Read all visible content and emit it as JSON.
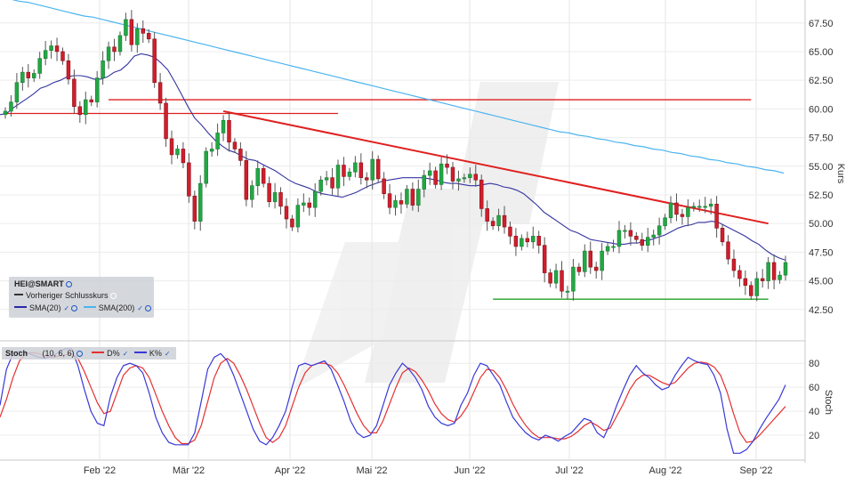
{
  "chart_data": [
    {
      "type": "candlestick",
      "instrument": "HEI@SMART",
      "x_labels": [
        "Feb '22",
        "Mär '22",
        "Apr '22",
        "Mai '22",
        "Jun '22",
        "Jul '22",
        "Aug '22",
        "Sep '22"
      ],
      "ylabel": "Kurs",
      "yticks": [
        42.5,
        45.0,
        47.5,
        50.0,
        52.5,
        55.0,
        57.5,
        60.0,
        62.5,
        65.0,
        67.5
      ],
      "ylim": [
        40.0,
        69.5
      ],
      "legend": {
        "instrument": "HEI@SMART",
        "prev_close": "Vorheriger Schlusskurs",
        "sma20": "SMA(20)",
        "sma200": "SMA(200)"
      },
      "closes": [
        59.8,
        60.6,
        62.3,
        63.2,
        62.7,
        63.1,
        64.4,
        65.1,
        65.5,
        65.0,
        64.2,
        62.6,
        60.2,
        59.5,
        60.8,
        60.6,
        62.7,
        64.2,
        65.4,
        65.0,
        66.4,
        67.8,
        65.6,
        67.0,
        66.6,
        66.1,
        62.3,
        60.5,
        57.4,
        56.0,
        56.5,
        55.3,
        52.4,
        50.2,
        53.5,
        56.3,
        56.5,
        57.9,
        59.0,
        57.1,
        56.5,
        55.5,
        52.1,
        53.3,
        54.8,
        53.5,
        51.9,
        52.7,
        51.5,
        50.4,
        49.7,
        51.6,
        51.8,
        51.4,
        52.8,
        53.8,
        54.0,
        53.1,
        55.1,
        54.1,
        54.5,
        55.3,
        54.0,
        53.8,
        55.6,
        53.9,
        52.6,
        51.4,
        52.0,
        51.7,
        53.0,
        51.6,
        53.0,
        54.2,
        54.6,
        53.4,
        55.2,
        54.9,
        53.7,
        53.9,
        54.0,
        54.3,
        53.8,
        51.3,
        50.2,
        49.8,
        50.7,
        49.7,
        48.9,
        48.0,
        48.7,
        48.4,
        48.9,
        48.1,
        45.7,
        44.8,
        45.9,
        44.1,
        44.1,
        46.2,
        45.8,
        47.6,
        46.2,
        45.9,
        47.6,
        48.0,
        48.0,
        49.4,
        49.4,
        48.9,
        48.6,
        48.1,
        48.8,
        49.0,
        49.8,
        50.5,
        51.8,
        50.8,
        50.6,
        51.4,
        51.5,
        51.5,
        51.5,
        51.7,
        49.6,
        48.4,
        46.9,
        45.9,
        45.2,
        44.6,
        43.7,
        45.2,
        45.0,
        46.6,
        45.1,
        45.5,
        46.6
      ],
      "sma20": [
        59.5,
        59.6,
        60.1,
        60.5,
        60.9,
        61.3,
        61.8,
        62.0,
        62.3,
        62.5,
        62.8,
        62.9,
        62.9,
        62.8,
        62.6,
        62.6,
        62.8,
        63.2,
        63.4,
        63.9,
        64.6,
        64.8,
        64.7,
        64.5,
        64.0,
        63.4,
        62.4,
        61.3,
        60.2,
        59.2,
        58.6,
        57.9,
        57.3,
        56.8,
        56.4,
        56.2,
        55.9,
        55.6,
        55.5,
        55.2,
        54.9,
        54.6,
        54.2,
        53.8,
        53.5,
        53.3,
        53.1,
        52.8,
        52.6,
        52.5,
        52.4,
        52.3,
        52.5,
        52.7,
        53.0,
        53.3,
        53.5,
        53.7,
        53.8,
        53.9,
        54.0,
        54.0,
        54.0,
        54.0,
        53.9,
        53.8,
        53.6,
        53.5,
        53.5,
        53.4,
        53.3,
        53.3,
        53.4,
        53.5,
        53.4,
        53.2,
        53.1,
        52.9,
        52.6,
        52.1,
        51.6,
        51.0,
        50.6,
        50.2,
        49.8,
        49.4,
        49.2,
        48.9,
        48.6,
        48.5,
        48.4,
        48.3,
        48.2,
        48.2,
        48.3,
        48.3,
        48.5,
        48.6,
        48.8,
        49.0,
        49.3,
        49.6,
        49.8,
        49.9,
        50.1,
        50.1,
        50.2,
        50.1,
        49.8,
        49.5,
        49.2,
        48.9,
        48.5,
        48.2,
        47.7,
        47.3,
        47.0,
        46.8
      ],
      "sma200": [
        69.8,
        69.6,
        69.4,
        69.3,
        69.1,
        68.9,
        68.7,
        68.5,
        68.3,
        68.1,
        68.0,
        67.8,
        67.6,
        67.4,
        67.2,
        67.0,
        66.8,
        66.6,
        66.4,
        66.2,
        66.0,
        65.8,
        65.6,
        65.4,
        65.2,
        65.0,
        64.8,
        64.6,
        64.4,
        64.2,
        64.0,
        63.8,
        63.6,
        63.4,
        63.2,
        63.0,
        62.8,
        62.6,
        62.4,
        62.2,
        62.0,
        61.8,
        61.6,
        61.4,
        61.2,
        61.0,
        60.8,
        60.6,
        60.4,
        60.2,
        60.0,
        59.8,
        59.6,
        59.4,
        59.2,
        59.0,
        58.8,
        58.6,
        58.4,
        58.2,
        58.0,
        57.9,
        57.7,
        57.6,
        57.4,
        57.3,
        57.1,
        57.0,
        56.8,
        56.7,
        56.5,
        56.4,
        56.2,
        56.1,
        55.9,
        55.8,
        55.6,
        55.5,
        55.3,
        55.2,
        55.0,
        54.9,
        54.7,
        54.6,
        54.4
      ],
      "trendlines": [
        {
          "name": "resistance-top",
          "points": [
            [
              0,
              59.6
            ],
            [
              58,
              59.6
            ]
          ],
          "color": "#e02020"
        },
        {
          "name": "resistance-upper",
          "points": [
            [
              18,
              60.8
            ],
            [
              130,
              60.8
            ]
          ],
          "color": "#e02020"
        },
        {
          "name": "falling-trendline",
          "points": [
            [
              38,
              59.8
            ],
            [
              133,
              50.0
            ]
          ],
          "color": "#e02020"
        },
        {
          "name": "support",
          "points": [
            [
              85,
              43.4
            ],
            [
              133,
              43.4
            ]
          ],
          "color": "#20a020"
        }
      ]
    },
    {
      "type": "line",
      "title": "Stoch",
      "params": "(10, 6, 6)",
      "series_names": [
        "D%",
        "K%"
      ],
      "ylabel": "Stoch",
      "yticks": [
        20,
        40,
        60,
        80
      ],
      "ylim": [
        0,
        95
      ],
      "k": [
        45,
        75,
        88,
        90,
        89,
        87,
        85,
        84,
        86,
        89,
        92,
        92,
        78,
        58,
        40,
        30,
        28,
        52,
        68,
        78,
        80,
        78,
        72,
        55,
        35,
        22,
        14,
        12,
        12,
        12,
        22,
        48,
        75,
        85,
        88,
        82,
        70,
        55,
        40,
        25,
        15,
        12,
        18,
        28,
        40,
        60,
        78,
        80,
        78,
        80,
        82,
        75,
        62,
        48,
        32,
        22,
        18,
        20,
        28,
        45,
        62,
        72,
        80,
        75,
        68,
        58,
        44,
        35,
        30,
        28,
        30,
        45,
        55,
        70,
        80,
        78,
        70,
        62,
        48,
        35,
        28,
        22,
        18,
        16,
        20,
        18,
        15,
        19,
        22,
        28,
        34,
        32,
        22,
        18,
        30,
        45,
        58,
        70,
        78,
        72,
        68,
        62,
        58,
        60,
        70,
        78,
        85,
        82,
        80,
        79,
        70,
        55,
        25,
        5,
        5,
        8,
        15,
        25,
        34,
        42,
        50,
        62
      ],
      "d": [
        35,
        50,
        68,
        82,
        88,
        89,
        88,
        86,
        85,
        86,
        87,
        88,
        84,
        73,
        60,
        47,
        38,
        40,
        55,
        70,
        76,
        78,
        76,
        68,
        54,
        40,
        28,
        18,
        13,
        13,
        16,
        28,
        48,
        68,
        80,
        84,
        80,
        70,
        58,
        44,
        30,
        18,
        14,
        18,
        28,
        44,
        60,
        72,
        78,
        80,
        80,
        78,
        72,
        62,
        50,
        38,
        28,
        22,
        22,
        32,
        46,
        60,
        72,
        76,
        73,
        66,
        57,
        46,
        38,
        33,
        31,
        36,
        44,
        56,
        68,
        75,
        74,
        68,
        58,
        46,
        36,
        28,
        22,
        18,
        18,
        18,
        17,
        17,
        19,
        23,
        28,
        31,
        28,
        24,
        26,
        36,
        46,
        58,
        66,
        70,
        70,
        67,
        64,
        62,
        64,
        70,
        76,
        80,
        81,
        80,
        77,
        70,
        56,
        38,
        22,
        14,
        15,
        20,
        26,
        32,
        38,
        44
      ]
    }
  ]
}
